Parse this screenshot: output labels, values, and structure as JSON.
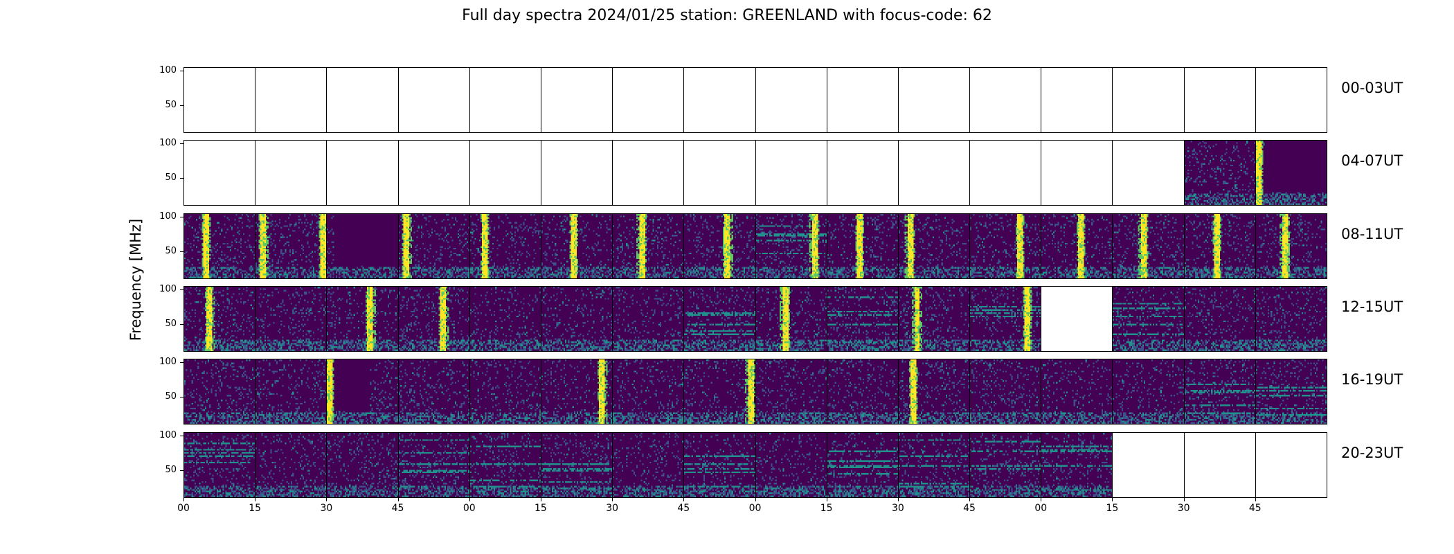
{
  "chart_data": {
    "type": "heatmap",
    "title": "Full day spectra 2024/01/25 station: GREENLAND with focus-code: 62",
    "ylabel": "Frequency [MHz]",
    "xlabel": "",
    "colormap": "viridis",
    "colors": {
      "background": "#440154",
      "low": "#3b528b",
      "mid": "#21918c",
      "high": "#5ec962",
      "peak": "#fde725"
    },
    "y_ticks": [
      100,
      50
    ],
    "ylim": [
      10,
      105
    ],
    "x_ticks": [
      "00",
      "15",
      "30",
      "45",
      "00",
      "15",
      "30",
      "45",
      "00",
      "15",
      "30",
      "45",
      "00",
      "15",
      "30",
      "45"
    ],
    "grid": false,
    "rows": [
      {
        "label": "00-03UT",
        "panels": [
          {
            "empty": true
          },
          {
            "empty": true
          },
          {
            "empty": true
          },
          {
            "empty": true
          },
          {
            "empty": true
          },
          {
            "empty": true
          },
          {
            "empty": true
          },
          {
            "empty": true
          },
          {
            "empty": true
          },
          {
            "empty": true
          },
          {
            "empty": true
          },
          {
            "empty": true
          },
          {
            "empty": true
          },
          {
            "empty": true
          },
          {
            "empty": true
          },
          {
            "empty": true
          }
        ]
      },
      {
        "label": "04-07UT",
        "panels": [
          {
            "empty": true
          },
          {
            "empty": true
          },
          {
            "empty": true
          },
          {
            "empty": true
          },
          {
            "empty": true
          },
          {
            "empty": true
          },
          {
            "empty": true
          },
          {
            "empty": true
          },
          {
            "empty": true
          },
          {
            "empty": true
          },
          {
            "empty": true
          },
          {
            "empty": true
          },
          {
            "empty": true
          },
          {
            "empty": true
          },
          {
            "empty": false,
            "burst": []
          },
          {
            "empty": false,
            "burst": [
              0.03
            ],
            "quiet": [
              0.12,
              1.0
            ]
          }
        ]
      },
      {
        "label": "08-11UT",
        "panels": [
          {
            "empty": false,
            "burst": [
              0.3
            ]
          },
          {
            "empty": false,
            "burst": [
              0.1,
              0.95
            ]
          },
          {
            "empty": false,
            "burst": [],
            "quiet": [
              0.1,
              1.0
            ]
          },
          {
            "empty": false,
            "burst": [
              0.1
            ]
          },
          {
            "empty": false,
            "burst": [
              0.2
            ]
          },
          {
            "empty": false,
            "burst": [
              0.45
            ]
          },
          {
            "empty": false,
            "burst": [
              0.4
            ]
          },
          {
            "empty": false,
            "burst": [
              0.6
            ]
          },
          {
            "empty": false,
            "burst": [
              0.82
            ],
            "bands": true
          },
          {
            "empty": false,
            "burst": [
              0.45
            ]
          },
          {
            "empty": false,
            "burst": [
              0.15
            ]
          },
          {
            "empty": false,
            "burst": [
              0.7
            ]
          },
          {
            "empty": false,
            "burst": [
              0.55
            ]
          },
          {
            "empty": false,
            "burst": [
              0.42
            ]
          },
          {
            "empty": false,
            "burst": [
              0.45
            ]
          },
          {
            "empty": false,
            "burst": [
              0.4
            ]
          }
        ]
      },
      {
        "label": "12-15UT",
        "panels": [
          {
            "empty": false,
            "burst": [
              0.35
            ]
          },
          {
            "empty": false,
            "burst": []
          },
          {
            "empty": false,
            "burst": [
              0.6
            ]
          },
          {
            "empty": false,
            "burst": [
              0.62
            ]
          },
          {
            "empty": false,
            "burst": []
          },
          {
            "empty": false,
            "burst": []
          },
          {
            "empty": false,
            "burst": []
          },
          {
            "empty": false,
            "burst": [],
            "bands": true
          },
          {
            "empty": false,
            "burst": [
              0.4
            ]
          },
          {
            "empty": false,
            "burst": [],
            "bands": true
          },
          {
            "empty": false,
            "burst": [
              0.25
            ]
          },
          {
            "empty": false,
            "burst": [
              0.8
            ],
            "bands": true
          },
          {
            "empty": true
          },
          {
            "empty": false,
            "burst": [],
            "bands": true
          },
          {
            "empty": false,
            "burst": []
          },
          {
            "empty": false,
            "burst": []
          }
        ]
      },
      {
        "label": "16-19UT",
        "panels": [
          {
            "empty": false,
            "burst": []
          },
          {
            "empty": false,
            "burst": []
          },
          {
            "empty": false,
            "burst": [
              0.03
            ],
            "quiet": [
              0.1,
              0.6
            ]
          },
          {
            "empty": false,
            "burst": []
          },
          {
            "empty": false,
            "burst": []
          },
          {
            "empty": false,
            "burst": [
              0.85
            ]
          },
          {
            "empty": false,
            "burst": []
          },
          {
            "empty": false,
            "burst": [
              0.92
            ]
          },
          {
            "empty": false,
            "burst": []
          },
          {
            "empty": false,
            "burst": []
          },
          {
            "empty": false,
            "burst": [
              0.2
            ]
          },
          {
            "empty": false,
            "burst": []
          },
          {
            "empty": false,
            "burst": []
          },
          {
            "empty": false,
            "burst": []
          },
          {
            "empty": false,
            "burst": [],
            "bands": true
          },
          {
            "empty": false,
            "burst": [],
            "bands": true
          }
        ]
      },
      {
        "label": "20-23UT",
        "panels": [
          {
            "empty": false,
            "burst": [],
            "bands": true
          },
          {
            "empty": false,
            "burst": []
          },
          {
            "empty": false,
            "burst": []
          },
          {
            "empty": false,
            "burst": [],
            "bands": true
          },
          {
            "empty": false,
            "burst": [],
            "bands": true
          },
          {
            "empty": false,
            "burst": [],
            "bands": true
          },
          {
            "empty": false,
            "burst": []
          },
          {
            "empty": false,
            "burst": [],
            "bands": true
          },
          {
            "empty": false,
            "burst": []
          },
          {
            "empty": false,
            "burst": [],
            "bands": true
          },
          {
            "empty": false,
            "burst": [],
            "bands": true
          },
          {
            "empty": false,
            "burst": [],
            "bands": true
          },
          {
            "empty": false,
            "burst": [],
            "bands": true
          },
          {
            "empty": true
          },
          {
            "empty": true
          },
          {
            "empty": true
          }
        ]
      }
    ]
  }
}
